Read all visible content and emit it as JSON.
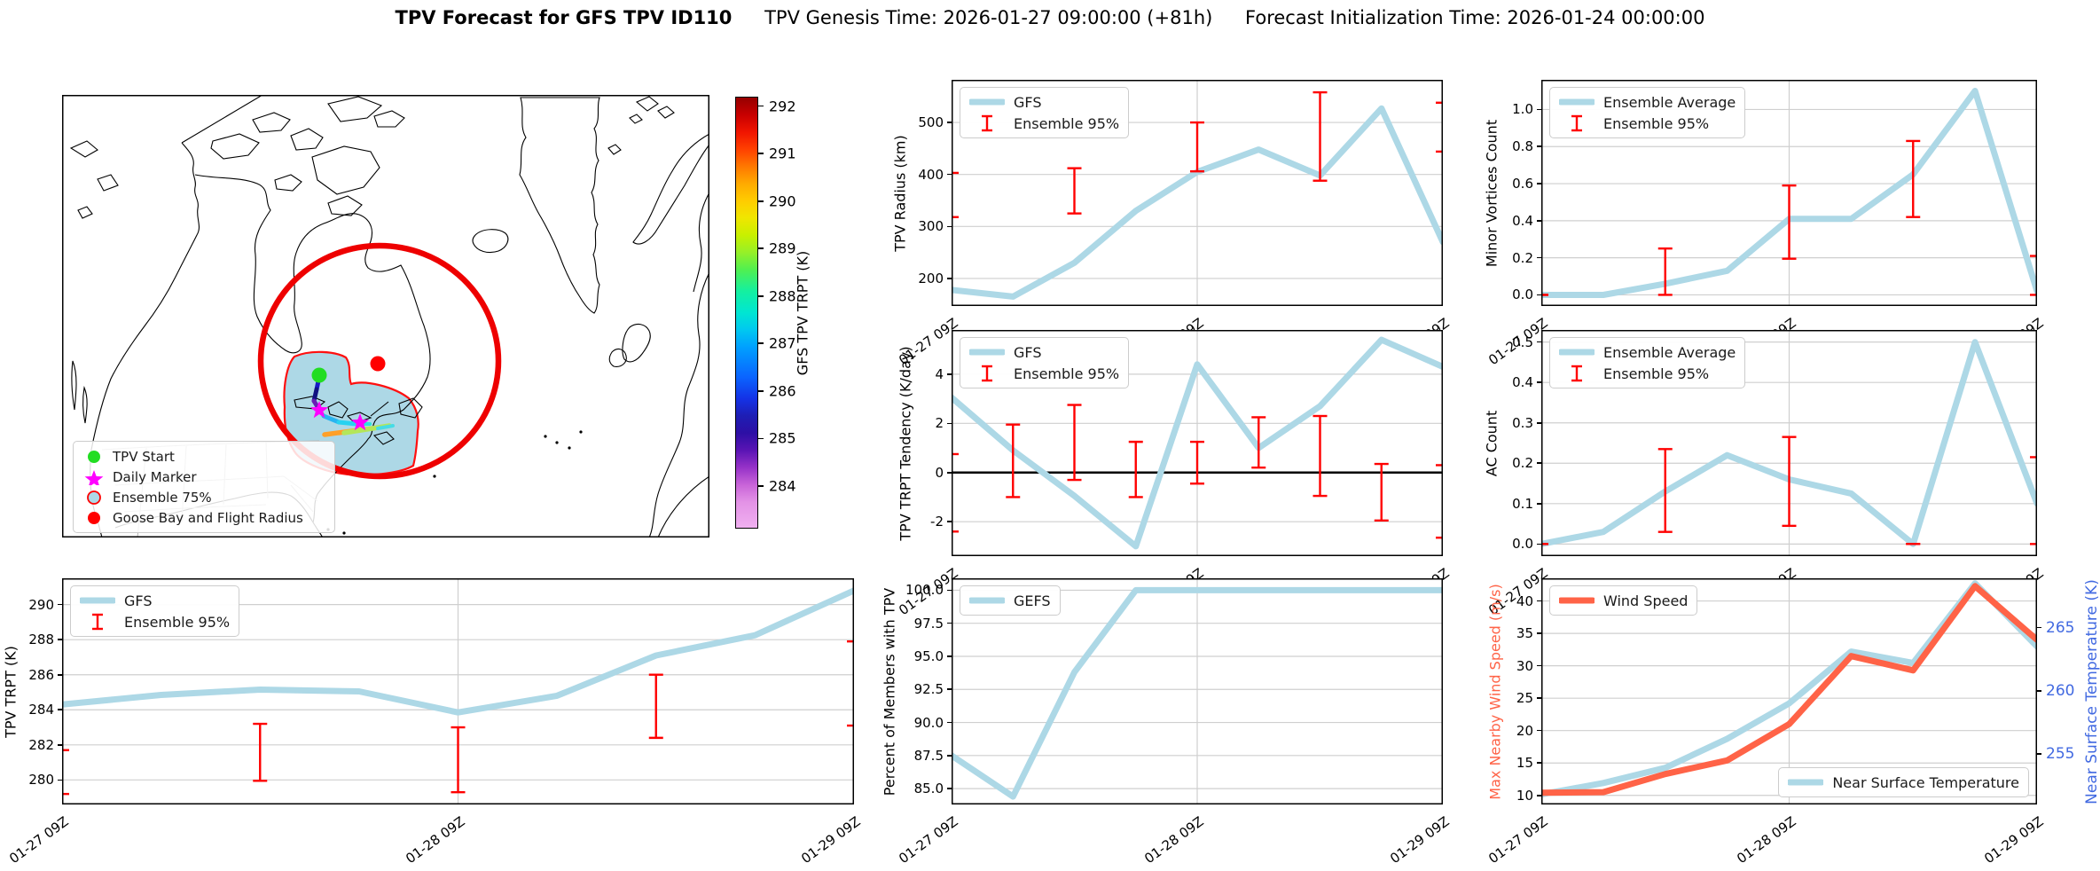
{
  "title": {
    "main": "TPV Forecast for GFS TPV ID110",
    "genesis": "TPV Genesis Time: 2026-01-27 09:00:00 (+81h)",
    "init": "Forecast Initialization Time: 2026-01-24 00:00:00"
  },
  "map": {
    "legend": [
      {
        "label": "TPV Start",
        "marker": "dot",
        "color": "#22dd22",
        "edge": "none"
      },
      {
        "label": "Daily Marker",
        "marker": "star",
        "color": "#ff00ff",
        "edge": "none"
      },
      {
        "label": "Ensemble 75%",
        "marker": "ring",
        "color": "#add8e6",
        "edge": "#ff0000"
      },
      {
        "label": "Goose Bay and Flight Radius",
        "marker": "dot",
        "color": "#ff0000",
        "edge": "none"
      }
    ],
    "colorbar": {
      "label": "GFS TPV TRPT (K)",
      "ticks": [
        284,
        285,
        286,
        287,
        288,
        289,
        290,
        291,
        292
      ],
      "lim": [
        283.1,
        292.2
      ],
      "stops": [
        [
          0.0,
          "#f0b0f0"
        ],
        [
          0.06,
          "#e392e6"
        ],
        [
          0.1,
          "#c864d8"
        ],
        [
          0.14,
          "#9632c8"
        ],
        [
          0.18,
          "#5a14b4"
        ],
        [
          0.22,
          "#2d0fa5"
        ],
        [
          0.26,
          "#1e1eb4"
        ],
        [
          0.3,
          "#1432e6"
        ],
        [
          0.35,
          "#0a64ff"
        ],
        [
          0.42,
          "#00a0ff"
        ],
        [
          0.46,
          "#00c8f0"
        ],
        [
          0.5,
          "#00e6d2"
        ],
        [
          0.55,
          "#14f0a0"
        ],
        [
          0.6,
          "#50f050"
        ],
        [
          0.64,
          "#96f028"
        ],
        [
          0.68,
          "#c8f000"
        ],
        [
          0.72,
          "#f0e600"
        ],
        [
          0.76,
          "#ffcc00"
        ],
        [
          0.8,
          "#ffaa00"
        ],
        [
          0.84,
          "#ff7800"
        ],
        [
          0.88,
          "#ff4000"
        ],
        [
          0.92,
          "#f01400"
        ],
        [
          0.96,
          "#c80000"
        ],
        [
          1.0,
          "#960000"
        ]
      ]
    }
  },
  "chart_data": [
    {
      "id": "tpv_trpt",
      "type": "line",
      "ylabel": "TPV TRPT (K)",
      "yticks": [
        280,
        282,
        284,
        286,
        288,
        290
      ],
      "ylim": [
        278.6,
        291.5
      ],
      "x_ticklabels": [
        "01-27 09Z",
        "01-28 09Z",
        "01-29 09Z"
      ],
      "series": [
        {
          "name": "GFS",
          "color": "#ADD8E6",
          "axis": "left",
          "values": [
            284.3,
            284.85,
            285.15,
            285.05,
            283.85,
            284.8,
            287.1,
            288.25,
            290.8
          ]
        }
      ],
      "errorbars": {
        "color": "#FF0000",
        "caps": [
          [
            0,
            279.2,
            281.7
          ],
          [
            0.25,
            279.95,
            283.2
          ],
          [
            0.5,
            279.3,
            283.0
          ],
          [
            0.75,
            282.4,
            286.0
          ],
          [
            1,
            283.1,
            287.9
          ]
        ]
      },
      "legends": [
        {
          "pos": "tl",
          "entries": [
            {
              "label": "GFS",
              "sample": "line",
              "color": "#ADD8E6"
            },
            {
              "label": "Ensemble 95%",
              "sample": "err",
              "color": "#FF0000"
            }
          ]
        }
      ],
      "tickw": 36
    },
    {
      "id": "radius",
      "type": "line",
      "ylabel": "TPV Radius (km)",
      "yticks": [
        200,
        300,
        400,
        500
      ],
      "ylim": [
        147,
        582
      ],
      "x_ticklabels": [
        "01-27 09Z",
        "01-28 09Z",
        "01-29 09Z"
      ],
      "series": [
        {
          "name": "GFS",
          "color": "#ADD8E6",
          "axis": "left",
          "values": [
            178,
            165,
            230,
            330,
            405,
            448,
            398,
            527,
            270
          ]
        }
      ],
      "errorbars": {
        "color": "#FF0000",
        "caps": [
          [
            0,
            318,
            403
          ],
          [
            0.25,
            325,
            412
          ],
          [
            0.5,
            406,
            500
          ],
          [
            0.75,
            388,
            558
          ],
          [
            1,
            444,
            538
          ]
        ]
      },
      "legends": [
        {
          "pos": "tl",
          "entries": [
            {
              "label": "GFS",
              "sample": "line",
              "color": "#ADD8E6"
            },
            {
              "label": "Ensemble 95%",
              "sample": "err",
              "color": "#FF0000"
            }
          ]
        }
      ],
      "tickw": 36
    },
    {
      "id": "tendency",
      "type": "line",
      "ylabel": "TPV TRPT Tendency (K/day)",
      "yticks": [
        -2,
        0,
        2,
        4
      ],
      "ylim": [
        -3.4,
        5.8
      ],
      "zero_line": true,
      "x_ticklabels": [
        "01-27 09Z",
        "01-28 09Z",
        "01-29 09Z"
      ],
      "series": [
        {
          "name": "GFS",
          "color": "#ADD8E6",
          "axis": "left",
          "values": [
            3.05,
            0.9,
            -0.95,
            -3.0,
            4.4,
            1.0,
            2.7,
            5.4,
            4.3
          ]
        }
      ],
      "errorbars": {
        "color": "#FF0000",
        "caps": [
          [
            0,
            -2.4,
            0.75
          ],
          [
            0.125,
            -1.0,
            1.95
          ],
          [
            0.25,
            -0.3,
            2.75
          ],
          [
            0.375,
            -1.0,
            1.25
          ],
          [
            0.5,
            -0.45,
            1.25
          ],
          [
            0.625,
            0.2,
            2.25
          ],
          [
            0.75,
            -0.95,
            2.3
          ],
          [
            0.875,
            -1.95,
            0.35
          ],
          [
            1,
            -2.65,
            0.3
          ]
        ]
      },
      "legends": [
        {
          "pos": "tl",
          "entries": [
            {
              "label": "GFS",
              "sample": "line",
              "color": "#ADD8E6"
            },
            {
              "label": "Ensemble 95%",
              "sample": "err",
              "color": "#FF0000"
            }
          ]
        }
      ],
      "tickw": 30
    },
    {
      "id": "percent",
      "type": "line",
      "ylabel": "Percent of Members with TPV",
      "yticks": [
        85,
        87.5,
        90,
        92.5,
        95,
        97.5,
        100
      ],
      "ytick_labels": [
        "85.0",
        "87.5",
        "90.0",
        "92.5",
        "95.0",
        "97.5",
        "100.0"
      ],
      "ylim": [
        83.8,
        100.9
      ],
      "x_ticklabels": [
        "01-27 09Z",
        "01-28 09Z",
        "01-29 09Z"
      ],
      "series": [
        {
          "name": "GEFS",
          "color": "#ADD8E6",
          "axis": "left",
          "values": [
            87.5,
            84.4,
            93.8,
            100,
            100,
            100,
            100,
            100,
            100
          ]
        }
      ],
      "legends": [
        {
          "pos": "tl",
          "entries": [
            {
              "label": "GEFS",
              "sample": "line",
              "color": "#ADD8E6"
            }
          ]
        }
      ],
      "tickw": 48
    },
    {
      "id": "minor",
      "type": "line",
      "ylabel": "Minor Vortices Count",
      "yticks": [
        0,
        0.2,
        0.4,
        0.6,
        0.8,
        1.0
      ],
      "ytick_labels": [
        "0.0",
        "0.2",
        "0.4",
        "0.6",
        "0.8",
        "1.0"
      ],
      "ylim": [
        -0.06,
        1.16
      ],
      "x_ticklabels": [
        "01-27 09Z",
        "01-28 09Z",
        "01-29 09Z"
      ],
      "series": [
        {
          "name": "Ensemble Average",
          "color": "#ADD8E6",
          "axis": "left",
          "values": [
            0,
            0,
            0.06,
            0.13,
            0.41,
            0.41,
            0.65,
            1.1,
            0.02
          ]
        }
      ],
      "errorbars": {
        "color": "#FF0000",
        "caps": [
          [
            0,
            0,
            0
          ],
          [
            0.25,
            0,
            0.25
          ],
          [
            0.5,
            0.195,
            0.59
          ],
          [
            0.75,
            0.42,
            0.83
          ],
          [
            1,
            0,
            0.21
          ]
        ]
      },
      "legends": [
        {
          "pos": "tl",
          "entries": [
            {
              "label": "Ensemble Average",
              "sample": "line",
              "color": "#ADD8E6"
            },
            {
              "label": "Ensemble 95%",
              "sample": "err",
              "color": "#FF0000"
            }
          ]
        }
      ],
      "tickw": 34
    },
    {
      "id": "ac",
      "type": "line",
      "ylabel": "AC Count",
      "yticks": [
        0,
        0.1,
        0.2,
        0.3,
        0.4,
        0.5
      ],
      "ytick_labels": [
        "0.0",
        "0.1",
        "0.2",
        "0.3",
        "0.4",
        "0.5"
      ],
      "ylim": [
        -0.03,
        0.53
      ],
      "x_ticklabels": [
        "01-27 09Z",
        "01-28 09Z",
        "01-29 09Z"
      ],
      "series": [
        {
          "name": "Ensemble Average",
          "color": "#ADD8E6",
          "axis": "left",
          "values": [
            0,
            0.03,
            0.13,
            0.22,
            0.16,
            0.125,
            0,
            0.5,
            0.1
          ]
        }
      ],
      "errorbars": {
        "color": "#FF0000",
        "caps": [
          [
            0,
            0,
            0
          ],
          [
            0.25,
            0.03,
            0.235
          ],
          [
            0.5,
            0.045,
            0.265
          ],
          [
            0.75,
            0,
            0
          ],
          [
            1,
            0,
            0.215
          ]
        ]
      },
      "legends": [
        {
          "pos": "tl",
          "entries": [
            {
              "label": "Ensemble Average",
              "sample": "line",
              "color": "#ADD8E6"
            },
            {
              "label": "Ensemble 95%",
              "sample": "err",
              "color": "#FF0000"
            }
          ]
        }
      ],
      "tickw": 34
    },
    {
      "id": "wind_temp",
      "type": "line",
      "ylabel": "Max Nearby Wind Speed (m/s)",
      "ylabel_color": "#FF6347",
      "yticks": [
        10,
        15,
        20,
        25,
        30,
        35,
        40
      ],
      "ylim": [
        8.6,
        43.5
      ],
      "right_axis": {
        "label": "Near Surface Temperature (K)",
        "color": "#4169E1",
        "ticks": [
          255,
          260,
          265
        ],
        "lim": [
          251.0,
          268.9
        ]
      },
      "x_ticklabels": [
        "01-27 09Z",
        "01-28 09Z",
        "01-29 09Z"
      ],
      "series": [
        {
          "name": "Near Surface Temperature",
          "color": "#ADD8E6",
          "axis": "right",
          "values": [
            251.8,
            252.7,
            253.9,
            256.2,
            259.0,
            263.1,
            262.2,
            268.5,
            263.5
          ]
        },
        {
          "name": "Wind Speed",
          "color": "#FF6347",
          "axis": "left",
          "values": [
            10.4,
            10.5,
            13.3,
            15.4,
            21.0,
            31.5,
            29.3,
            42.3,
            34.0
          ]
        }
      ],
      "legends": [
        {
          "pos": "tl",
          "entries": [
            {
              "label": "Wind Speed",
              "sample": "line",
              "color": "#FF6347"
            }
          ]
        },
        {
          "pos": "br",
          "entries": [
            {
              "label": "Near Surface Temperature",
              "sample": "line",
              "color": "#ADD8E6"
            }
          ]
        }
      ],
      "tickw": 30
    }
  ]
}
